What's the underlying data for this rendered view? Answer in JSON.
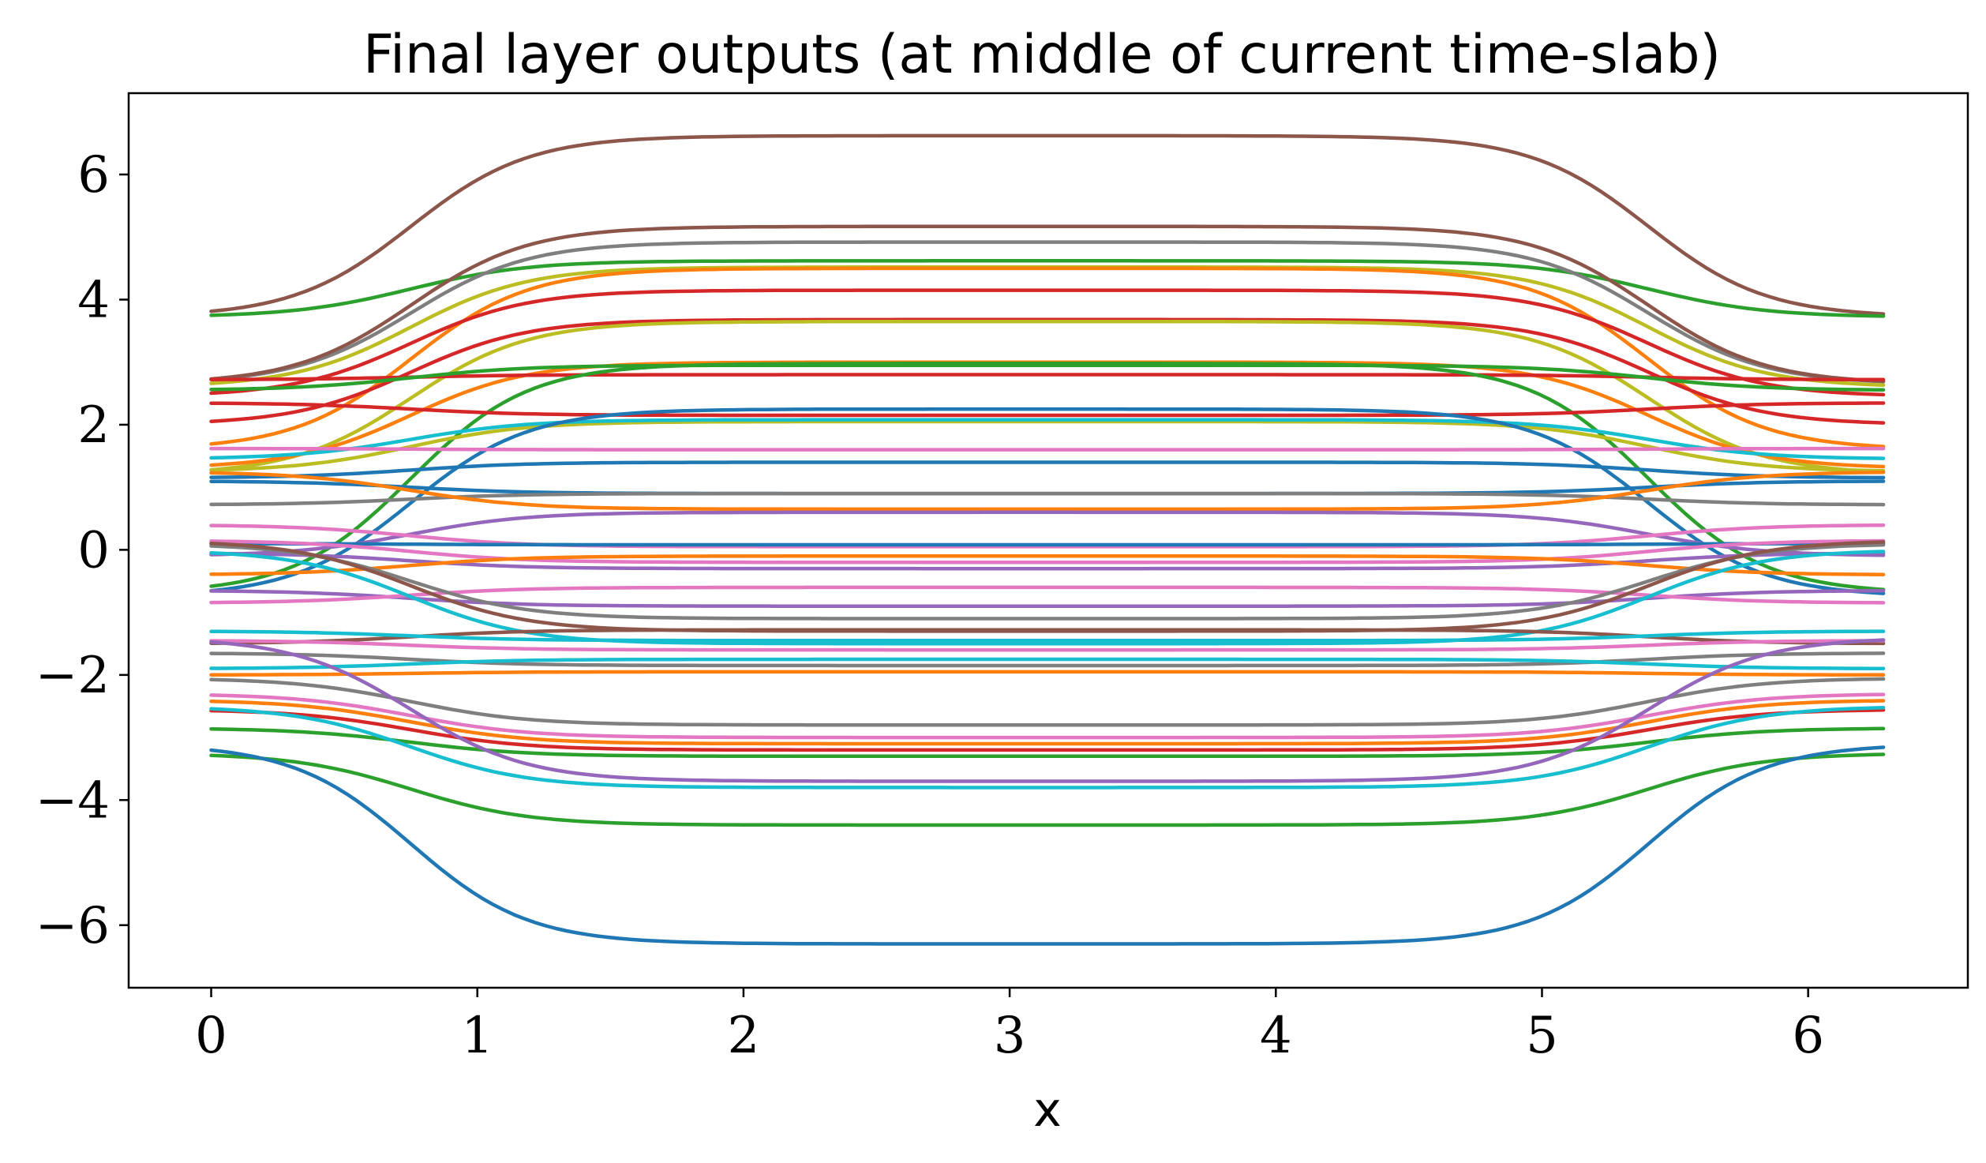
{
  "chart_data": {
    "type": "line",
    "title": "Final layer outputs (at middle of current time-slab)",
    "xlabel": "x",
    "ylabel": "",
    "xlim": [
      -0.31,
      6.6
    ],
    "ylim": [
      -7.0,
      7.3
    ],
    "xticks": [
      0,
      1,
      2,
      3,
      4,
      5,
      6
    ],
    "xtick_labels": [
      "0",
      "1",
      "2",
      "3",
      "4",
      "5",
      "6"
    ],
    "yticks": [
      -6,
      -4,
      -2,
      0,
      2,
      4,
      6
    ],
    "ytick_labels": [
      "−6",
      "−4",
      "−2",
      "0",
      "2",
      "4",
      "6"
    ],
    "grid": false,
    "legend": "none",
    "x_range": [
      0,
      6.283
    ],
    "series": [
      {
        "color": "#8c564b",
        "edge": 3.72,
        "mid": 6.62
      },
      {
        "color": "#2ca02c",
        "edge": 3.72,
        "mid": 4.62
      },
      {
        "color": "#7f7f7f",
        "edge": 2.65,
        "mid": 4.92
      },
      {
        "color": "#8c564b",
        "edge": 2.65,
        "mid": 5.17
      },
      {
        "color": "#bcbd22",
        "edge": 2.6,
        "mid": 4.52
      },
      {
        "color": "#ff7f0e",
        "edge": 1.6,
        "mid": 4.5
      },
      {
        "color": "#d62728",
        "edge": 2.45,
        "mid": 4.15
      },
      {
        "color": "#d62728",
        "edge": 2.0,
        "mid": 3.68
      },
      {
        "color": "#bcbd22",
        "edge": 1.2,
        "mid": 3.65
      },
      {
        "color": "#ff7f0e",
        "edge": 1.3,
        "mid": 3.0
      },
      {
        "color": "#d62728",
        "edge": 2.72,
        "mid": 2.8
      },
      {
        "color": "#2ca02c",
        "edge": 2.55,
        "mid": 2.95
      },
      {
        "color": "#2ca02c",
        "edge": -0.7,
        "mid": 2.98
      },
      {
        "color": "#d62728",
        "edge": 2.35,
        "mid": 2.15
      },
      {
        "color": "#bcbd22",
        "edge": 1.25,
        "mid": 2.05
      },
      {
        "color": "#17becf",
        "edge": 1.45,
        "mid": 2.08
      },
      {
        "color": "#1f77b4",
        "edge": -0.75,
        "mid": 2.25
      },
      {
        "color": "#e377c2",
        "edge": 1.62,
        "mid": 1.6
      },
      {
        "color": "#1f77b4",
        "edge": 1.15,
        "mid": 1.4
      },
      {
        "color": "#1f77b4",
        "edge": 1.1,
        "mid": 0.9
      },
      {
        "color": "#7f7f7f",
        "edge": 0.72,
        "mid": 0.9
      },
      {
        "color": "#ff7f0e",
        "edge": 1.25,
        "mid": 0.65
      },
      {
        "color": "#9467bd",
        "edge": -0.1,
        "mid": 0.6
      },
      {
        "color": "#e377c2",
        "edge": 0.4,
        "mid": 0.05
      },
      {
        "color": "#1f77b4",
        "edge": 0.1,
        "mid": 0.08
      },
      {
        "color": "#e377c2",
        "edge": 0.15,
        "mid": -0.2
      },
      {
        "color": "#9467bd",
        "edge": -0.05,
        "mid": -0.3
      },
      {
        "color": "#ff7f0e",
        "edge": -0.4,
        "mid": -0.1
      },
      {
        "color": "#9467bd",
        "edge": -0.65,
        "mid": -0.9
      },
      {
        "color": "#e377c2",
        "edge": -0.85,
        "mid": -0.6
      },
      {
        "color": "#7f7f7f",
        "edge": 0.1,
        "mid": -1.1
      },
      {
        "color": "#8c564b",
        "edge": 0.15,
        "mid": -1.3
      },
      {
        "color": "#17becf",
        "edge": 0.0,
        "mid": -1.5
      },
      {
        "color": "#8c564b",
        "edge": -1.5,
        "mid": -1.28
      },
      {
        "color": "#17becf",
        "edge": -1.3,
        "mid": -1.45
      },
      {
        "color": "#e377c2",
        "edge": -1.45,
        "mid": -1.6
      },
      {
        "color": "#7f7f7f",
        "edge": -1.65,
        "mid": -1.85
      },
      {
        "color": "#17becf",
        "edge": -1.9,
        "mid": -1.75
      },
      {
        "color": "#ff7f0e",
        "edge": -2.0,
        "mid": -1.95
      },
      {
        "color": "#7f7f7f",
        "edge": -2.05,
        "mid": -2.8
      },
      {
        "color": "#e377c2",
        "edge": -2.3,
        "mid": -3.0
      },
      {
        "color": "#ff7f0e",
        "edge": -2.4,
        "mid": -3.1
      },
      {
        "color": "#d62728",
        "edge": -2.55,
        "mid": -3.2
      },
      {
        "color": "#2ca02c",
        "edge": -2.85,
        "mid": -3.3
      },
      {
        "color": "#9467bd",
        "edge": -1.4,
        "mid": -3.7
      },
      {
        "color": "#17becf",
        "edge": -2.5,
        "mid": -3.8
      },
      {
        "color": "#2ca02c",
        "edge": -3.25,
        "mid": -4.4
      },
      {
        "color": "#1f77b4",
        "edge": -3.1,
        "mid": -6.3
      }
    ]
  }
}
